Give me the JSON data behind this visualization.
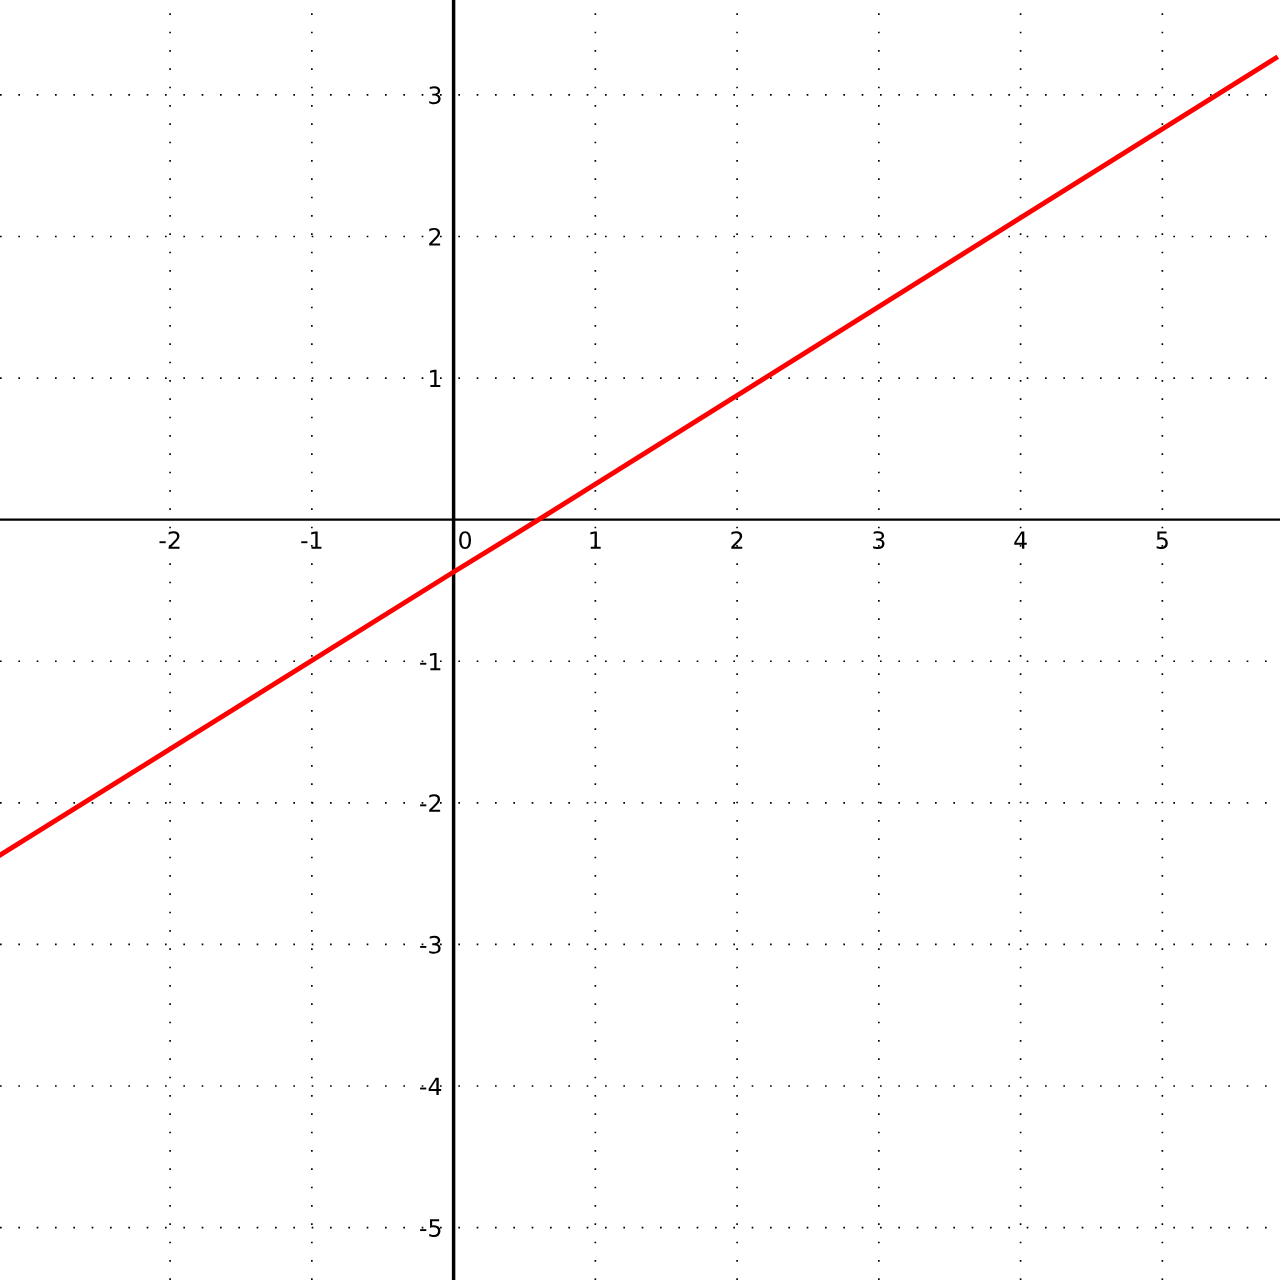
{
  "chart_data": {
    "type": "line",
    "x": [
      -3.2,
      0,
      0.6,
      5.8
    ],
    "series": [
      {
        "color": "#ff0000",
        "values": [
          -2.37,
          -0.37,
          0,
          3.26
        ]
      }
    ],
    "xlim": [
      -3.2,
      5.83
    ],
    "ylim": [
      -5.37,
      3.67
    ],
    "xticks": [
      -2,
      -1,
      0,
      1,
      2,
      3,
      4,
      5
    ],
    "yticks": [
      -5,
      -4,
      -3,
      -2,
      -1,
      1,
      2,
      3
    ],
    "grid": true,
    "line_style": "solid",
    "marker": "none"
  }
}
